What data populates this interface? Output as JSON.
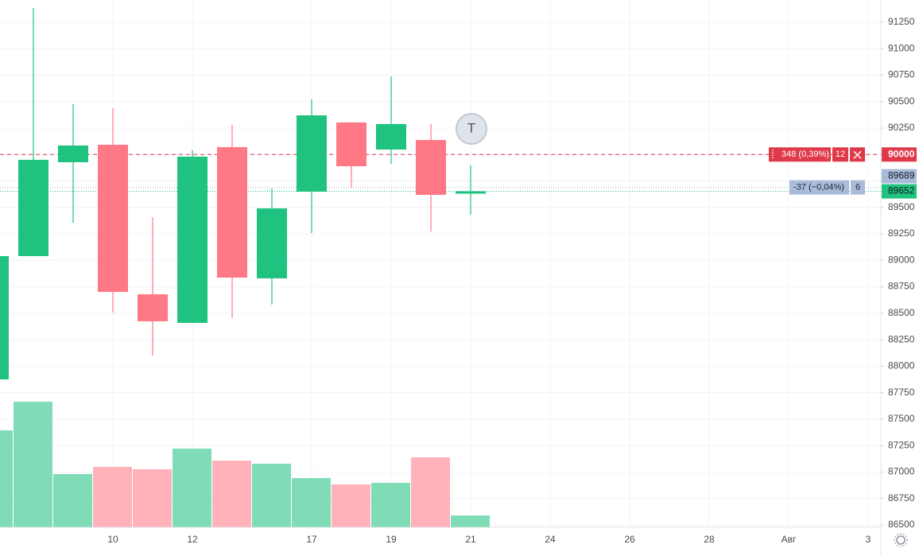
{
  "chart_data": {
    "type": "candlestick",
    "categories": [
      null,
      null,
      null,
      "10",
      null,
      "12",
      null,
      null,
      "17",
      null,
      "19",
      null,
      "21",
      null,
      "24",
      null,
      "26",
      null,
      "28",
      null,
      "Авг",
      null,
      "3"
    ],
    "open": [
      87875,
      89040,
      89927,
      90092,
      88679,
      88409,
      90070,
      88830,
      89649,
      90303,
      90047,
      90137,
      89630,
      null,
      null,
      null,
      null,
      null,
      null,
      null,
      null,
      null,
      null
    ],
    "high": [
      89040,
      91385,
      90476,
      90438,
      89408,
      90040,
      90280,
      89679,
      90521,
      90303,
      90739,
      90288,
      89897,
      null,
      null,
      null,
      null,
      null,
      null,
      null,
      null,
      null,
      null
    ],
    "low": [
      87875,
      89040,
      89356,
      88506,
      88100,
      88409,
      88454,
      88581,
      89258,
      89686,
      89912,
      89273,
      89431,
      null,
      null,
      null,
      null,
      null,
      null,
      null,
      null,
      null,
      null
    ],
    "close": [
      89040,
      89950,
      90085,
      88702,
      88424,
      89980,
      88837,
      89491,
      90370,
      89889,
      90288,
      89619,
      89652,
      null,
      null,
      null,
      null,
      null,
      null,
      null,
      null,
      null,
      null
    ],
    "volume": [
      122,
      158,
      67,
      76,
      73,
      99,
      84,
      80,
      62,
      54,
      56,
      88,
      15,
      null,
      null,
      null,
      null,
      null,
      null,
      null,
      null,
      null,
      null
    ],
    "up_color": "#1fc27e",
    "down_color": "#ff7885",
    "volume_up_color": "#7fdcb6",
    "volume_down_color": "#ffb2ba",
    "ylim": [
      86477,
      91460
    ],
    "yticks": [
      86500,
      86750,
      87000,
      87250,
      87500,
      87750,
      88000,
      88250,
      88500,
      88750,
      89000,
      89250,
      89500,
      89750,
      90000,
      90250,
      90500,
      90750,
      91000,
      91250
    ],
    "grid": true,
    "price_lines": [
      {
        "value": 90000,
        "label": "348 (0,39%)",
        "quantity": "12",
        "color": "#e0394a"
      },
      {
        "value": 89689,
        "label": "-37 (−0,04%)",
        "quantity": "6",
        "color": "#a9bbd9"
      }
    ],
    "last_price_color": "#1fc27e",
    "marker": "T"
  }
}
